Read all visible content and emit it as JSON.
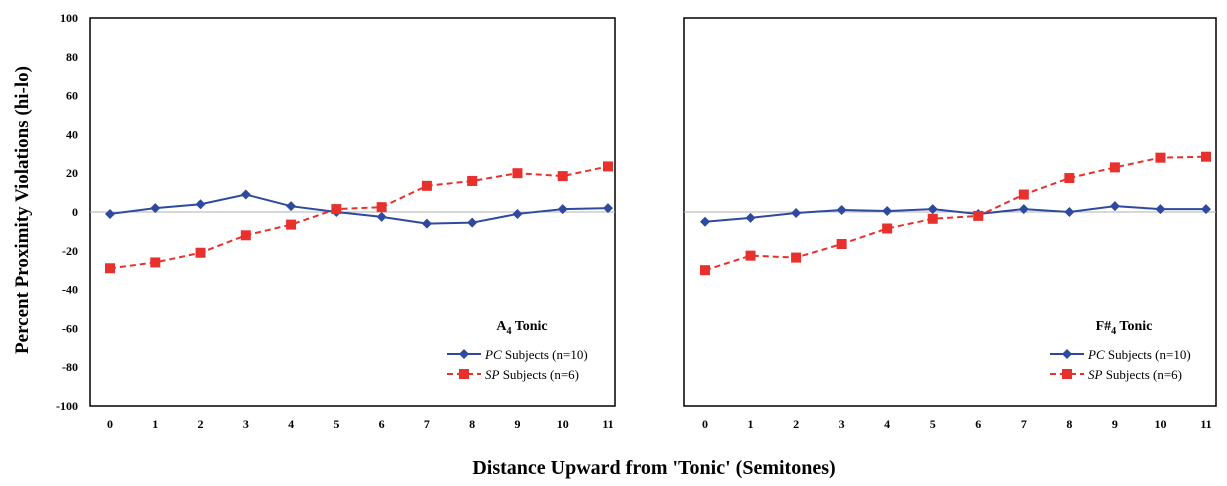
{
  "chart_data": {
    "type": "line",
    "ylabel": "Percent Proximity Violations (hi-lo)",
    "xlabel": "Distance Upward from 'Tonic' (Semitones)",
    "ylim": [
      -100,
      100
    ],
    "yticks": [
      100,
      80,
      60,
      40,
      20,
      0,
      -20,
      -40,
      -60,
      -80,
      -100
    ],
    "x": [
      0,
      1,
      2,
      3,
      4,
      5,
      6,
      7,
      8,
      9,
      10,
      11
    ],
    "legend_position": "bottom-right",
    "colors": {
      "pc": "#2e4a9e",
      "sp": "#e8302d"
    },
    "panels": [
      {
        "title_main": "A",
        "title_sub": "4",
        "title_rest": " Tonic",
        "series": [
          {
            "name_italic": "PC",
            "name_rest": " Subjects (n=10)",
            "style": "solid-diamond",
            "values": [
              -1,
              2,
              4,
              9,
              3,
              0,
              -2.5,
              -6,
              -5.5,
              -1,
              1.5,
              2
            ]
          },
          {
            "name_italic": "SP",
            "name_rest": " Subjects (n=6)",
            "style": "dashed-square",
            "values": [
              -29,
              -26,
              -21,
              -12,
              -6.5,
              1.5,
              2.5,
              13.5,
              16,
              20,
              18.5,
              23.5
            ]
          }
        ]
      },
      {
        "title_main": "F#",
        "title_sub": "4",
        "title_rest": " Tonic",
        "series": [
          {
            "name_italic": "PC",
            "name_rest": " Subjects (n=10)",
            "style": "solid-diamond",
            "values": [
              -5,
              -3,
              -0.5,
              1,
              0.5,
              1.5,
              -1,
              1.5,
              0,
              3,
              1.5,
              1.5
            ]
          },
          {
            "name_italic": "SP",
            "name_rest": " Subjects (n=6)",
            "style": "dashed-square",
            "values": [
              -30,
              -22.5,
              -23.5,
              -16.5,
              -8.5,
              -3.5,
              -2,
              9,
              17.5,
              23,
              28,
              28.5
            ]
          }
        ]
      }
    ]
  }
}
